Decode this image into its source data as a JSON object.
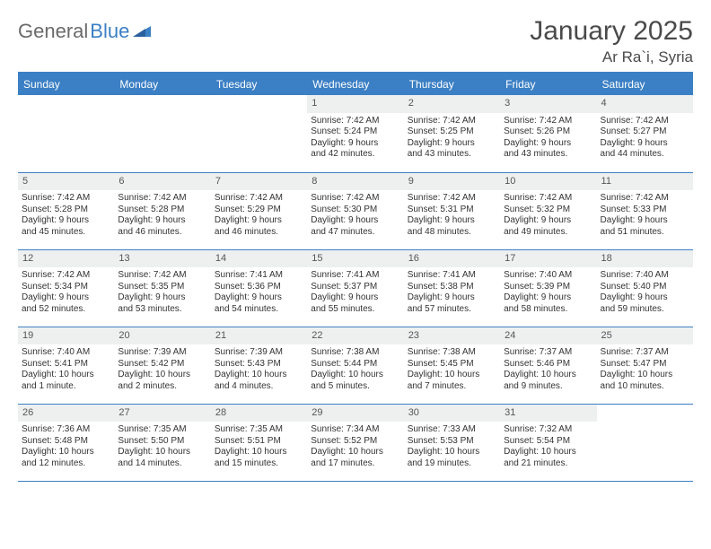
{
  "logo": {
    "part1": "General",
    "part2": "Blue"
  },
  "title": "January 2025",
  "location": "Ar Ra`i, Syria",
  "header_bg": "#3b7fc4",
  "daynum_bg": "#eef0f0",
  "border_color": "#3b7fc4",
  "text_color": "#333333",
  "dayHeaders": [
    "Sunday",
    "Monday",
    "Tuesday",
    "Wednesday",
    "Thursday",
    "Friday",
    "Saturday"
  ],
  "weeks": [
    [
      {
        "n": "",
        "sr": "",
        "ss": "",
        "dl1": "",
        "dl2": "",
        "empty": true
      },
      {
        "n": "",
        "sr": "",
        "ss": "",
        "dl1": "",
        "dl2": "",
        "empty": true
      },
      {
        "n": "",
        "sr": "",
        "ss": "",
        "dl1": "",
        "dl2": "",
        "empty": true
      },
      {
        "n": "1",
        "sr": "Sunrise: 7:42 AM",
        "ss": "Sunset: 5:24 PM",
        "dl1": "Daylight: 9 hours",
        "dl2": "and 42 minutes."
      },
      {
        "n": "2",
        "sr": "Sunrise: 7:42 AM",
        "ss": "Sunset: 5:25 PM",
        "dl1": "Daylight: 9 hours",
        "dl2": "and 43 minutes."
      },
      {
        "n": "3",
        "sr": "Sunrise: 7:42 AM",
        "ss": "Sunset: 5:26 PM",
        "dl1": "Daylight: 9 hours",
        "dl2": "and 43 minutes."
      },
      {
        "n": "4",
        "sr": "Sunrise: 7:42 AM",
        "ss": "Sunset: 5:27 PM",
        "dl1": "Daylight: 9 hours",
        "dl2": "and 44 minutes."
      }
    ],
    [
      {
        "n": "5",
        "sr": "Sunrise: 7:42 AM",
        "ss": "Sunset: 5:28 PM",
        "dl1": "Daylight: 9 hours",
        "dl2": "and 45 minutes."
      },
      {
        "n": "6",
        "sr": "Sunrise: 7:42 AM",
        "ss": "Sunset: 5:28 PM",
        "dl1": "Daylight: 9 hours",
        "dl2": "and 46 minutes."
      },
      {
        "n": "7",
        "sr": "Sunrise: 7:42 AM",
        "ss": "Sunset: 5:29 PM",
        "dl1": "Daylight: 9 hours",
        "dl2": "and 46 minutes."
      },
      {
        "n": "8",
        "sr": "Sunrise: 7:42 AM",
        "ss": "Sunset: 5:30 PM",
        "dl1": "Daylight: 9 hours",
        "dl2": "and 47 minutes."
      },
      {
        "n": "9",
        "sr": "Sunrise: 7:42 AM",
        "ss": "Sunset: 5:31 PM",
        "dl1": "Daylight: 9 hours",
        "dl2": "and 48 minutes."
      },
      {
        "n": "10",
        "sr": "Sunrise: 7:42 AM",
        "ss": "Sunset: 5:32 PM",
        "dl1": "Daylight: 9 hours",
        "dl2": "and 49 minutes."
      },
      {
        "n": "11",
        "sr": "Sunrise: 7:42 AM",
        "ss": "Sunset: 5:33 PM",
        "dl1": "Daylight: 9 hours",
        "dl2": "and 51 minutes."
      }
    ],
    [
      {
        "n": "12",
        "sr": "Sunrise: 7:42 AM",
        "ss": "Sunset: 5:34 PM",
        "dl1": "Daylight: 9 hours",
        "dl2": "and 52 minutes."
      },
      {
        "n": "13",
        "sr": "Sunrise: 7:42 AM",
        "ss": "Sunset: 5:35 PM",
        "dl1": "Daylight: 9 hours",
        "dl2": "and 53 minutes."
      },
      {
        "n": "14",
        "sr": "Sunrise: 7:41 AM",
        "ss": "Sunset: 5:36 PM",
        "dl1": "Daylight: 9 hours",
        "dl2": "and 54 minutes."
      },
      {
        "n": "15",
        "sr": "Sunrise: 7:41 AM",
        "ss": "Sunset: 5:37 PM",
        "dl1": "Daylight: 9 hours",
        "dl2": "and 55 minutes."
      },
      {
        "n": "16",
        "sr": "Sunrise: 7:41 AM",
        "ss": "Sunset: 5:38 PM",
        "dl1": "Daylight: 9 hours",
        "dl2": "and 57 minutes."
      },
      {
        "n": "17",
        "sr": "Sunrise: 7:40 AM",
        "ss": "Sunset: 5:39 PM",
        "dl1": "Daylight: 9 hours",
        "dl2": "and 58 minutes."
      },
      {
        "n": "18",
        "sr": "Sunrise: 7:40 AM",
        "ss": "Sunset: 5:40 PM",
        "dl1": "Daylight: 9 hours",
        "dl2": "and 59 minutes."
      }
    ],
    [
      {
        "n": "19",
        "sr": "Sunrise: 7:40 AM",
        "ss": "Sunset: 5:41 PM",
        "dl1": "Daylight: 10 hours",
        "dl2": "and 1 minute."
      },
      {
        "n": "20",
        "sr": "Sunrise: 7:39 AM",
        "ss": "Sunset: 5:42 PM",
        "dl1": "Daylight: 10 hours",
        "dl2": "and 2 minutes."
      },
      {
        "n": "21",
        "sr": "Sunrise: 7:39 AM",
        "ss": "Sunset: 5:43 PM",
        "dl1": "Daylight: 10 hours",
        "dl2": "and 4 minutes."
      },
      {
        "n": "22",
        "sr": "Sunrise: 7:38 AM",
        "ss": "Sunset: 5:44 PM",
        "dl1": "Daylight: 10 hours",
        "dl2": "and 5 minutes."
      },
      {
        "n": "23",
        "sr": "Sunrise: 7:38 AM",
        "ss": "Sunset: 5:45 PM",
        "dl1": "Daylight: 10 hours",
        "dl2": "and 7 minutes."
      },
      {
        "n": "24",
        "sr": "Sunrise: 7:37 AM",
        "ss": "Sunset: 5:46 PM",
        "dl1": "Daylight: 10 hours",
        "dl2": "and 9 minutes."
      },
      {
        "n": "25",
        "sr": "Sunrise: 7:37 AM",
        "ss": "Sunset: 5:47 PM",
        "dl1": "Daylight: 10 hours",
        "dl2": "and 10 minutes."
      }
    ],
    [
      {
        "n": "26",
        "sr": "Sunrise: 7:36 AM",
        "ss": "Sunset: 5:48 PM",
        "dl1": "Daylight: 10 hours",
        "dl2": "and 12 minutes."
      },
      {
        "n": "27",
        "sr": "Sunrise: 7:35 AM",
        "ss": "Sunset: 5:50 PM",
        "dl1": "Daylight: 10 hours",
        "dl2": "and 14 minutes."
      },
      {
        "n": "28",
        "sr": "Sunrise: 7:35 AM",
        "ss": "Sunset: 5:51 PM",
        "dl1": "Daylight: 10 hours",
        "dl2": "and 15 minutes."
      },
      {
        "n": "29",
        "sr": "Sunrise: 7:34 AM",
        "ss": "Sunset: 5:52 PM",
        "dl1": "Daylight: 10 hours",
        "dl2": "and 17 minutes."
      },
      {
        "n": "30",
        "sr": "Sunrise: 7:33 AM",
        "ss": "Sunset: 5:53 PM",
        "dl1": "Daylight: 10 hours",
        "dl2": "and 19 minutes."
      },
      {
        "n": "31",
        "sr": "Sunrise: 7:32 AM",
        "ss": "Sunset: 5:54 PM",
        "dl1": "Daylight: 10 hours",
        "dl2": "and 21 minutes."
      },
      {
        "n": "",
        "sr": "",
        "ss": "",
        "dl1": "",
        "dl2": "",
        "empty": true
      }
    ]
  ]
}
